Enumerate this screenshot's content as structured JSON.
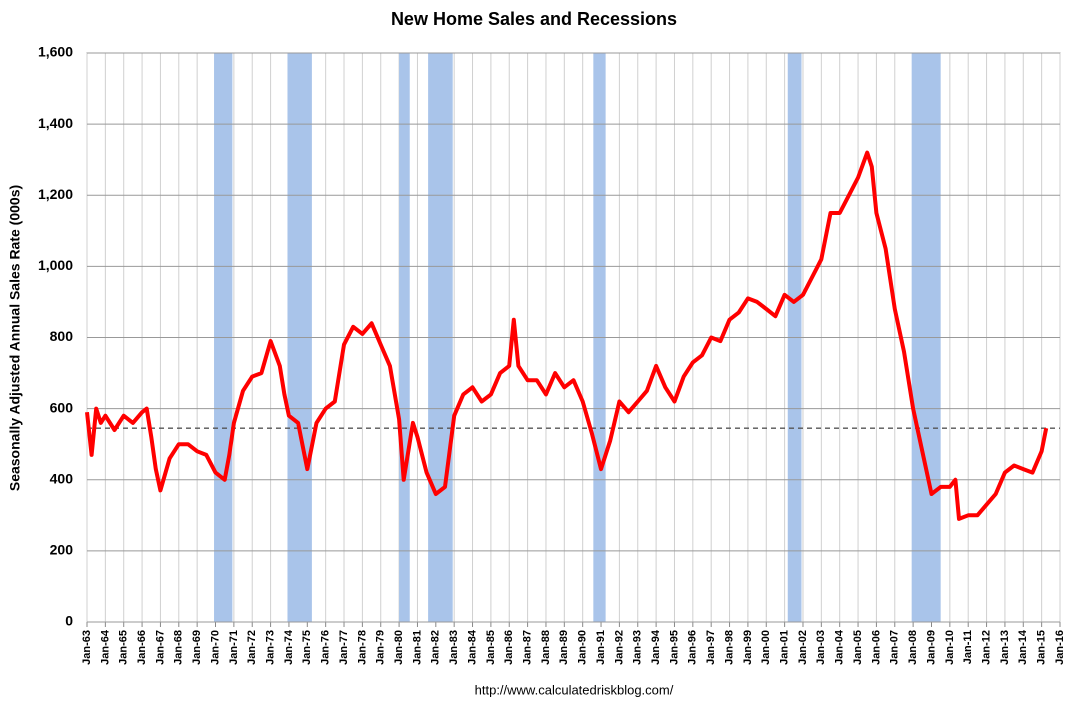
{
  "chart_data": {
    "type": "line",
    "title": "New Home Sales and Recessions",
    "y_label": "Seasonally Adjusted Annual Sales Rate (000s)",
    "source": "http://www.calculatedriskblog.com/",
    "xlim": [
      1963,
      2016
    ],
    "ylim": [
      0,
      1600
    ],
    "yticks": [
      0,
      200,
      400,
      600,
      800,
      {
        "value": 1000,
        "label": "1,000"
      },
      {
        "value": 1200,
        "label": "1,200"
      },
      {
        "value": 1400,
        "label": "1,400"
      },
      {
        "value": 1600,
        "label": "1,600"
      }
    ],
    "xticks": [
      {
        "value": 1963,
        "label": "Jan-63"
      },
      {
        "value": 1964,
        "label": "Jan-64"
      },
      {
        "value": 1965,
        "label": "Jan-65"
      },
      {
        "value": 1966,
        "label": "Jan-66"
      },
      {
        "value": 1967,
        "label": "Jan-67"
      },
      {
        "value": 1968,
        "label": "Jan-68"
      },
      {
        "value": 1969,
        "label": "Jan-69"
      },
      {
        "value": 1970,
        "label": "Jan-70"
      },
      {
        "value": 1971,
        "label": "Jan-71"
      },
      {
        "value": 1972,
        "label": "Jan-72"
      },
      {
        "value": 1973,
        "label": "Jan-73"
      },
      {
        "value": 1974,
        "label": "Jan-74"
      },
      {
        "value": 1975,
        "label": "Jan-75"
      },
      {
        "value": 1976,
        "label": "Jan-76"
      },
      {
        "value": 1977,
        "label": "Jan-77"
      },
      {
        "value": 1978,
        "label": "Jan-78"
      },
      {
        "value": 1979,
        "label": "Jan-79"
      },
      {
        "value": 1980,
        "label": "Jan-80"
      },
      {
        "value": 1981,
        "label": "Jan-81"
      },
      {
        "value": 1982,
        "label": "Jan-82"
      },
      {
        "value": 1983,
        "label": "Jan-83"
      },
      {
        "value": 1984,
        "label": "Jan-84"
      },
      {
        "value": 1985,
        "label": "Jan-85"
      },
      {
        "value": 1986,
        "label": "Jan-86"
      },
      {
        "value": 1987,
        "label": "Jan-87"
      },
      {
        "value": 1988,
        "label": "Jan-88"
      },
      {
        "value": 1989,
        "label": "Jan-89"
      },
      {
        "value": 1990,
        "label": "Jan-90"
      },
      {
        "value": 1991,
        "label": "Jan-91"
      },
      {
        "value": 1992,
        "label": "Jan-92"
      },
      {
        "value": 1993,
        "label": "Jan-93"
      },
      {
        "value": 1994,
        "label": "Jan-94"
      },
      {
        "value": 1995,
        "label": "Jan-95"
      },
      {
        "value": 1996,
        "label": "Jan-96"
      },
      {
        "value": 1997,
        "label": "Jan-97"
      },
      {
        "value": 1998,
        "label": "Jan-98"
      },
      {
        "value": 1999,
        "label": "Jan-99"
      },
      {
        "value": 2000,
        "label": "Jan-00"
      },
      {
        "value": 2001,
        "label": "Jan-01"
      },
      {
        "value": 2002,
        "label": "Jan-02"
      },
      {
        "value": 2003,
        "label": "Jan-03"
      },
      {
        "value": 2004,
        "label": "Jan-04"
      },
      {
        "value": 2005,
        "label": "Jan-05"
      },
      {
        "value": 2006,
        "label": "Jan-06"
      },
      {
        "value": 2007,
        "label": "Jan-07"
      },
      {
        "value": 2008,
        "label": "Jan-08"
      },
      {
        "value": 2009,
        "label": "Jan-09"
      },
      {
        "value": 2010,
        "label": "Jan-10"
      },
      {
        "value": 2011,
        "label": "Jan-11"
      },
      {
        "value": 2012,
        "label": "Jan-12"
      },
      {
        "value": 2013,
        "label": "Jan-13"
      },
      {
        "value": 2014,
        "label": "Jan-14"
      },
      {
        "value": 2015,
        "label": "Jan-15"
      },
      {
        "value": 2016,
        "label": "Jan-16"
      }
    ],
    "grid": true,
    "recession_color": "#a9c4ea",
    "recessions": [
      {
        "start": 1969.92,
        "end": 1970.92
      },
      {
        "start": 1973.92,
        "end": 1975.25
      },
      {
        "start": 1980.0,
        "end": 1980.58
      },
      {
        "start": 1981.58,
        "end": 1982.92
      },
      {
        "start": 1990.58,
        "end": 1991.25
      },
      {
        "start": 2001.17,
        "end": 2001.92
      },
      {
        "start": 2007.92,
        "end": 2009.5
      }
    ],
    "reference_line": 545,
    "x": [
      1963,
      1963.25,
      1963.5,
      1963.75,
      1964,
      1964.5,
      1965,
      1965.5,
      1966,
      1966.25,
      1966.5,
      1966.75,
      1967,
      1967.5,
      1968,
      1968.5,
      1969,
      1969.5,
      1970,
      1970.5,
      1970.75,
      1971,
      1971.5,
      1972,
      1972.5,
      1973,
      1973.5,
      1973.75,
      1974,
      1974.5,
      1975,
      1975.5,
      1976,
      1976.5,
      1977,
      1977.5,
      1978,
      1978.5,
      1979,
      1979.5,
      1980,
      1980.25,
      1980.75,
      1981,
      1981.5,
      1982,
      1982.5,
      1983,
      1983.5,
      1984,
      1984.5,
      1985,
      1985.5,
      1986,
      1986.25,
      1986.5,
      1987,
      1987.5,
      1988,
      1988.5,
      1989,
      1989.5,
      1990,
      1990.5,
      1991,
      1991.5,
      1992,
      1992.5,
      1993,
      1993.5,
      1994,
      1994.5,
      1995,
      1995.5,
      1996,
      1996.5,
      1997,
      1997.5,
      1998,
      1998.5,
      1999,
      1999.5,
      2000,
      2000.5,
      2001,
      2001.5,
      2002,
      2002.5,
      2003,
      2003.5,
      2004,
      2004.5,
      2005,
      2005.5,
      2005.75,
      2006,
      2006.5,
      2007,
      2007.5,
      2008,
      2008.5,
      2009,
      2009.5,
      2010,
      2010.3,
      2010.5,
      2011,
      2011.5,
      2012,
      2012.5,
      2013,
      2013.5,
      2014,
      2014.5,
      2015,
      2015.25
    ],
    "series": [
      {
        "color": "#ff0000",
        "values": [
          590,
          470,
          600,
          560,
          580,
          540,
          580,
          560,
          590,
          600,
          520,
          430,
          370,
          460,
          500,
          500,
          480,
          470,
          420,
          400,
          470,
          560,
          650,
          690,
          700,
          790,
          720,
          640,
          580,
          560,
          430,
          560,
          600,
          620,
          780,
          830,
          810,
          840,
          780,
          720,
          570,
          400,
          560,
          520,
          420,
          360,
          380,
          580,
          640,
          660,
          620,
          640,
          700,
          720,
          850,
          720,
          680,
          680,
          640,
          700,
          660,
          680,
          620,
          530,
          430,
          510,
          620,
          590,
          620,
          650,
          720,
          660,
          620,
          690,
          730,
          750,
          800,
          790,
          850,
          870,
          910,
          900,
          880,
          860,
          920,
          900,
          920,
          970,
          1020,
          1150,
          1150,
          1200,
          1250,
          1320,
          1280,
          1150,
          1050,
          880,
          760,
          600,
          480,
          360,
          380,
          380,
          400,
          290,
          300,
          300,
          330,
          360,
          420,
          440,
          430,
          420,
          480,
          545
        ]
      }
    ]
  }
}
